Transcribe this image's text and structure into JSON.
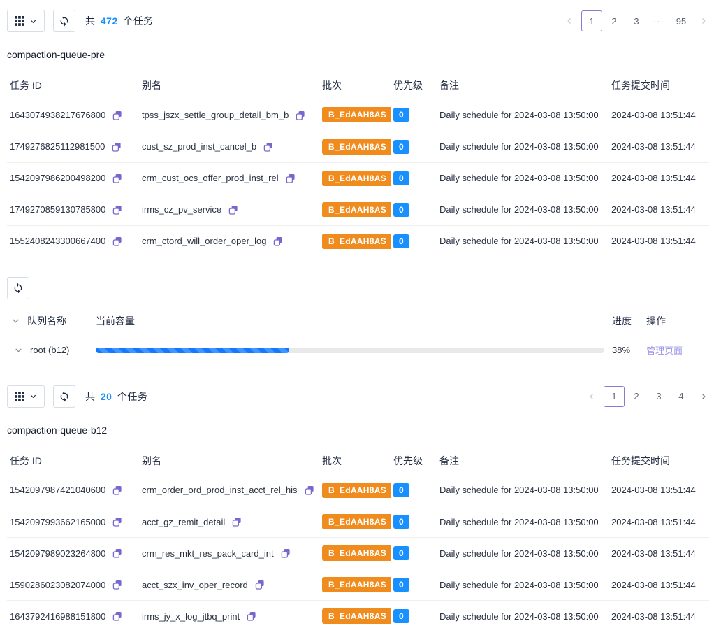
{
  "colors": {
    "accent_blue": "#1890ff",
    "badge_orange": "#f08c1e",
    "badge_blue": "#1890ff",
    "icon_purple": "#7468cf",
    "link_purple": "#9b94e6",
    "active_page_border": "#837cd0",
    "progress_fill": "#1677ff",
    "progress_stripe": "#3f96ff",
    "progress_track": "#e9e9e9"
  },
  "sections": {
    "pre": {
      "toolbar": {
        "total_prefix": "共",
        "total_count": "472",
        "total_suffix": "个任务"
      },
      "pagination": {
        "page1": "1",
        "page2": "2",
        "page3": "3",
        "ellipsis": "···",
        "last": "95"
      },
      "title": "compaction-queue-pre",
      "table": {
        "headers": {
          "id": "任务 ID",
          "alias": "别名",
          "batch": "批次",
          "priority": "优先级",
          "remark": "备注",
          "time": "任务提交时间"
        },
        "rows": [
          {
            "id": "1643074938217676800",
            "alias": "tpss_jszx_settle_group_detail_bm_b",
            "batch": "B_EdAAH8AS",
            "priority": "0",
            "remark": "Daily schedule for 2024-03-08 13:50:00",
            "time": "2024-03-08 13:51:44"
          },
          {
            "id": "1749276825112981500",
            "alias": "cust_sz_prod_inst_cancel_b",
            "batch": "B_EdAAH8AS",
            "priority": "0",
            "remark": "Daily schedule for 2024-03-08 13:50:00",
            "time": "2024-03-08 13:51:44"
          },
          {
            "id": "1542097986200498200",
            "alias": "crm_cust_ocs_offer_prod_inst_rel",
            "batch": "B_EdAAH8AS",
            "priority": "0",
            "remark": "Daily schedule for 2024-03-08 13:50:00",
            "time": "2024-03-08 13:51:44"
          },
          {
            "id": "1749270859130785800",
            "alias": "irms_cz_pv_service",
            "batch": "B_EdAAH8AS",
            "priority": "0",
            "remark": "Daily schedule for 2024-03-08 13:50:00",
            "time": "2024-03-08 13:51:44"
          },
          {
            "id": "1552408243300667400",
            "alias": "crm_ctord_will_order_oper_log",
            "batch": "B_EdAAH8AS",
            "priority": "0",
            "remark": "Daily schedule for 2024-03-08 13:50:00",
            "time": "2024-03-08 13:51:44"
          }
        ]
      }
    },
    "queue": {
      "headers": {
        "name": "队列名称",
        "capacity": "当前容量",
        "progress": "进度",
        "actions": "操作"
      },
      "row": {
        "name": "root (b12)",
        "progress_pct": 38,
        "progress_label": "38%",
        "action": "管理页面"
      }
    },
    "b12": {
      "toolbar": {
        "total_prefix": "共",
        "total_count": "20",
        "total_suffix": "个任务"
      },
      "pagination": {
        "page1": "1",
        "page2": "2",
        "page3": "3",
        "page4": "4"
      },
      "title": "compaction-queue-b12",
      "table": {
        "headers": {
          "id": "任务 ID",
          "alias": "别名",
          "batch": "批次",
          "priority": "优先级",
          "remark": "备注",
          "time": "任务提交时间"
        },
        "rows": [
          {
            "id": "1542097987421040600",
            "alias": "crm_order_ord_prod_inst_acct_rel_his",
            "batch": "B_EdAAH8AS",
            "priority": "0",
            "remark": "Daily schedule for 2024-03-08 13:50:00",
            "time": "2024-03-08 13:51:44"
          },
          {
            "id": "1542097993662165000",
            "alias": "acct_gz_remit_detail",
            "batch": "B_EdAAH8AS",
            "priority": "0",
            "remark": "Daily schedule for 2024-03-08 13:50:00",
            "time": "2024-03-08 13:51:44"
          },
          {
            "id": "1542097989023264800",
            "alias": "crm_res_mkt_res_pack_card_int",
            "batch": "B_EdAAH8AS",
            "priority": "0",
            "remark": "Daily schedule for 2024-03-08 13:50:00",
            "time": "2024-03-08 13:51:44"
          },
          {
            "id": "1590286023082074000",
            "alias": "acct_szx_inv_oper_record",
            "batch": "B_EdAAH8AS",
            "priority": "0",
            "remark": "Daily schedule for 2024-03-08 13:50:00",
            "time": "2024-03-08 13:51:44"
          },
          {
            "id": "1643792416988151800",
            "alias": "irms_jy_x_log_jtbq_print",
            "batch": "B_EdAAH8AS",
            "priority": "0",
            "remark": "Daily schedule for 2024-03-08 13:50:00",
            "time": "2024-03-08 13:51:44"
          }
        ]
      }
    }
  }
}
